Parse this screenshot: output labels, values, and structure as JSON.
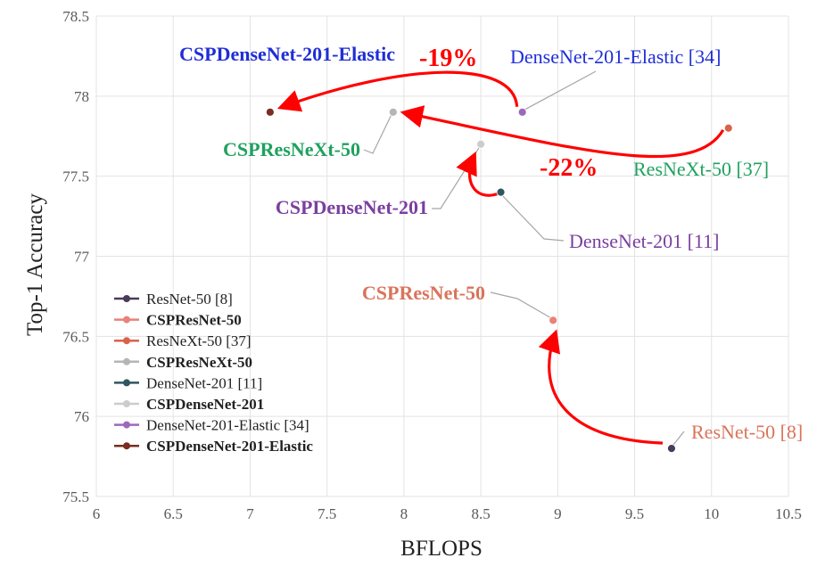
{
  "chart_data": {
    "type": "scatter",
    "xlabel": "BFLOPS",
    "ylabel": "Top-1 Accuracy",
    "xlim": [
      6,
      10.5
    ],
    "ylim": [
      75.5,
      78.5
    ],
    "xticks": [
      "6",
      "6.5",
      "7",
      "7.5",
      "8",
      "8.5",
      "9",
      "9.5",
      "10",
      "10.5"
    ],
    "yticks": [
      "75.5",
      "76",
      "76.5",
      "77",
      "77.5",
      "78",
      "78.5"
    ],
    "grid": true,
    "legend_placement": "bottom-left",
    "series": [
      {
        "name": "ResNet-50 [8]",
        "x": 9.74,
        "y": 75.8,
        "color": "#4b3b5a",
        "bold": false,
        "label_color": "#d9745b"
      },
      {
        "name": "CSPResNet-50",
        "x": 8.97,
        "y": 76.6,
        "color": "#e8827a",
        "bold": true,
        "label_color": "#d9745b"
      },
      {
        "name": "ResNeXt-50 [37]",
        "x": 10.11,
        "y": 77.8,
        "color": "#d9634a",
        "bold": false,
        "label_color": "#1fa15e"
      },
      {
        "name": "CSPResNeXt-50",
        "x": 7.93,
        "y": 77.9,
        "color": "#b5b5b5",
        "bold": true,
        "label_color": "#1fa15e"
      },
      {
        "name": "DenseNet-201 [11]",
        "x": 8.63,
        "y": 77.4,
        "color": "#2f5660",
        "bold": false,
        "label_color": "#7a3fa0"
      },
      {
        "name": "CSPDenseNet-201",
        "x": 8.5,
        "y": 77.7,
        "color": "#cccccc",
        "bold": true,
        "label_color": "#7a3fa0"
      },
      {
        "name": "DenseNet-201-Elastic [34]",
        "x": 8.77,
        "y": 77.9,
        "color": "#9b6ab8",
        "bold": false,
        "label_color": "#1f2ed6"
      },
      {
        "name": "CSPDenseNet-201-Elastic",
        "x": 7.13,
        "y": 77.9,
        "color": "#7a2e1f",
        "bold": true,
        "label_color": "#1f2ed6"
      }
    ],
    "annotations": [
      {
        "text": "-19%",
        "near": "DenseNet-201-Elastic to CSPDenseNet-201-Elastic"
      },
      {
        "text": "-22%",
        "near": "ResNeXt-50 to CSPResNeXt-50"
      }
    ]
  }
}
